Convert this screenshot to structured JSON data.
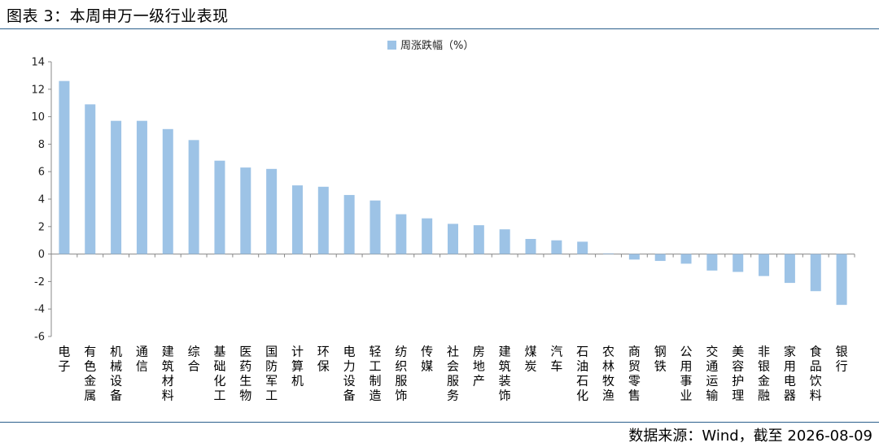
{
  "header": {
    "title": "图表 3：本周申万一级行业表现"
  },
  "footer": {
    "source": "数据来源：Wind，截至 2026-08-09"
  },
  "colors": {
    "bar": "#9dc3e6",
    "axis": "#888888",
    "rule": "#2b5f8c"
  },
  "chart_data": {
    "type": "bar",
    "title": "",
    "xlabel": "",
    "ylabel": "",
    "ylim": [
      -6,
      14
    ],
    "yticks": [
      14,
      12,
      10,
      8,
      6,
      4,
      2,
      0,
      -2,
      -4,
      -6
    ],
    "grid": false,
    "legend": {
      "position": "top-center"
    },
    "categories": [
      "电子",
      "有色金属",
      "机械设备",
      "通信",
      "建筑材料",
      "综合",
      "基础化工",
      "医药生物",
      "国防军工",
      "计算机",
      "环保",
      "电力设备",
      "轻工制造",
      "纺织服饰",
      "传媒",
      "社会服务",
      "房地产",
      "建筑装饰",
      "煤炭",
      "汽车",
      "石油石化",
      "农林牧渔",
      "商贸零售",
      "钢铁",
      "公用事业",
      "交通运输",
      "美容护理",
      "非银金融",
      "家用电器",
      "食品饮料",
      "银行"
    ],
    "series": [
      {
        "name": "周涨跌幅（%）",
        "values": [
          12.6,
          10.9,
          9.7,
          9.7,
          9.1,
          8.3,
          6.8,
          6.3,
          6.2,
          5.0,
          4.9,
          4.3,
          3.9,
          2.9,
          2.6,
          2.2,
          2.1,
          1.8,
          1.1,
          1.0,
          0.9,
          0.05,
          -0.4,
          -0.5,
          -0.7,
          -1.2,
          -1.3,
          -1.6,
          -2.1,
          -2.7,
          -3.7
        ]
      }
    ]
  }
}
